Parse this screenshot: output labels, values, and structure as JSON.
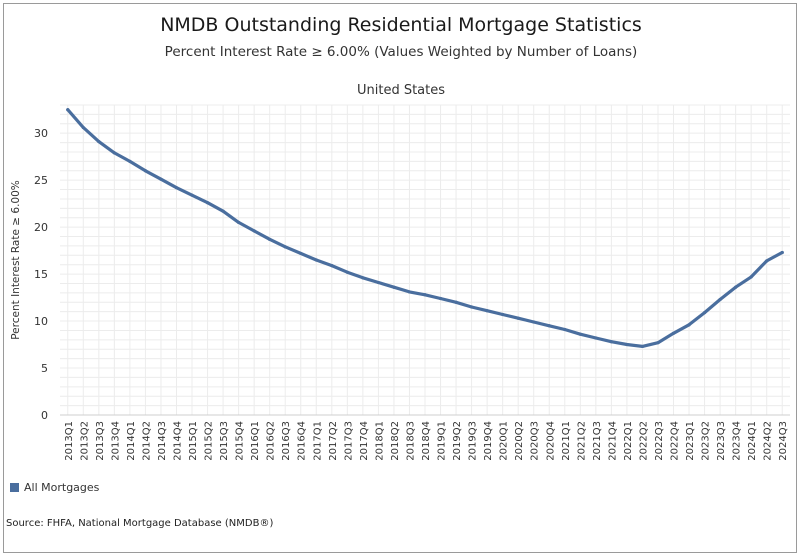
{
  "title": "NMDB Outstanding Residential Mortgage Statistics",
  "subtitle": "Percent Interest Rate ≥ 6.00% (Values Weighted by Number of Loans)",
  "panel_label": "United States",
  "source": "Source:  FHFA, National Mortgage Database (NMDB®)",
  "colors": {
    "line": "#4a6e9e",
    "grid": "#ececec",
    "axis_text": "#333333"
  },
  "chart_data": {
    "type": "line",
    "title": "NMDB Outstanding Residential Mortgage Statistics",
    "subtitle": "Percent Interest Rate ≥ 6.00% (Values Weighted by Number of Loans)",
    "panel": "United States",
    "xlabel": "",
    "ylabel": "Percent Interest Rate ≥ 6.00%",
    "ylim": [
      0,
      33
    ],
    "yticks": [
      0,
      5,
      10,
      15,
      20,
      25,
      30
    ],
    "grid": true,
    "legend_position": "bottom-left",
    "categories": [
      "2013Q1",
      "2013Q2",
      "2013Q3",
      "2013Q4",
      "2014Q1",
      "2014Q2",
      "2014Q3",
      "2014Q4",
      "2015Q1",
      "2015Q2",
      "2015Q3",
      "2015Q4",
      "2016Q1",
      "2016Q2",
      "2016Q3",
      "2016Q4",
      "2017Q1",
      "2017Q2",
      "2017Q3",
      "2017Q4",
      "2018Q1",
      "2018Q2",
      "2018Q3",
      "2018Q4",
      "2019Q1",
      "2019Q2",
      "2019Q3",
      "2019Q4",
      "2020Q1",
      "2020Q2",
      "2020Q3",
      "2020Q4",
      "2021Q1",
      "2021Q2",
      "2021Q3",
      "2021Q4",
      "2022Q1",
      "2022Q2",
      "2022Q3",
      "2022Q4",
      "2023Q1",
      "2023Q2",
      "2023Q3",
      "2023Q4",
      "2024Q1",
      "2024Q2",
      "2024Q3"
    ],
    "series": [
      {
        "name": "All Mortgages",
        "values": [
          32.5,
          30.6,
          29.1,
          27.9,
          27.0,
          26.0,
          25.1,
          24.2,
          23.4,
          22.6,
          21.7,
          20.5,
          19.6,
          18.7,
          17.9,
          17.2,
          16.5,
          15.9,
          15.2,
          14.6,
          14.1,
          13.6,
          13.1,
          12.8,
          12.4,
          12.0,
          11.5,
          11.1,
          10.7,
          10.3,
          9.9,
          9.5,
          9.1,
          8.6,
          8.2,
          7.8,
          7.5,
          7.3,
          7.7,
          8.7,
          9.6,
          10.9,
          12.3,
          13.6,
          14.7,
          16.4,
          17.3
        ]
      }
    ]
  }
}
